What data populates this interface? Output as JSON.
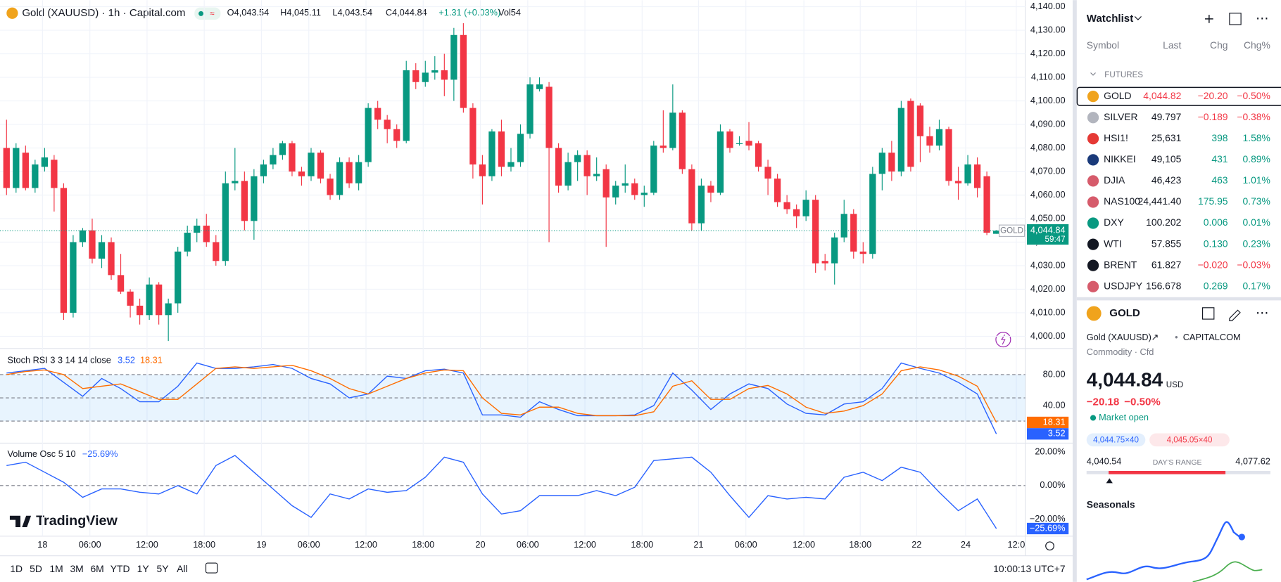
{
  "header": {
    "title": "Gold (XAUUSD) · 1h · Capital.com",
    "open": "O4,043.54",
    "high": "H4,045.11",
    "low": "L4,043.54",
    "close": "C4,044.84",
    "change": "+1.31 (+0.03%)",
    "volume": "Vol54"
  },
  "chart_data": [
    {
      "type": "candlestick",
      "up_color": "#089981",
      "down_color": "#f23645",
      "open": [
        4080,
        4063,
        4078,
        4063,
        4072,
        4075,
        4063,
        4010,
        4040,
        4045,
        4033,
        4040,
        4026,
        4019,
        4013,
        4009,
        4022,
        4009,
        4014,
        4036,
        4044,
        4047,
        4040,
        4032,
        4065,
        4066,
        4049,
        4068,
        4073,
        4077,
        4082,
        4070,
        4068,
        4078,
        4067,
        4060,
        4074,
        4065,
        4074,
        4097,
        4092,
        4088,
        4083,
        4113,
        4108,
        4112,
        4113,
        4109,
        4128,
        4097,
        4073,
        4068,
        4087,
        4072,
        4074,
        4086,
        4105,
        4106,
        4080,
        4064,
        4074,
        4077,
        4068,
        4071,
        4059,
        4064,
        4065,
        4060,
        4061,
        4081,
        4080,
        4095,
        4071,
        4048,
        4064,
        4061,
        4087,
        4082,
        4083,
        4082,
        4072,
        4067,
        4057,
        4054,
        4051,
        4058,
        4032,
        4031,
        4042,
        4052,
        4036,
        4035,
        4069,
        4078,
        4070,
        4100,
        4098,
        4085,
        4081,
        4088,
        4066,
        4065,
        4073,
        4068,
        4043.54
      ],
      "high": [
        4092,
        4082,
        4081,
        4075,
        4080,
        4077,
        4065,
        4043,
        4046,
        4050,
        4043,
        4042,
        4035,
        4020,
        4016,
        4025,
        4023,
        4016,
        4038,
        4047,
        4050,
        4052,
        4043,
        4070,
        4080,
        4070,
        4071,
        4075,
        4080,
        4083,
        4083,
        4072,
        4080,
        4079,
        4069,
        4076,
        4076,
        4077,
        4099,
        4100,
        4094,
        4090,
        4117,
        4116,
        4117,
        4119,
        4120,
        4131,
        4133,
        4099,
        4077,
        4088,
        4092,
        4080,
        4090,
        4110,
        4110,
        4108,
        4082,
        4078,
        4079,
        4079,
        4076,
        4073,
        4066,
        4073,
        4067,
        4064,
        4083,
        4096,
        4107,
        4096,
        4073,
        4067,
        4066,
        4090,
        4088,
        4085,
        4091,
        4083,
        4075,
        4069,
        4060,
        4056,
        4062,
        4060,
        4035,
        4044,
        4058,
        4054,
        4040,
        4072,
        4080,
        4083,
        4100,
        4101,
        4099,
        4089,
        4092,
        4089,
        4072,
        4077,
        4076,
        4070,
        4045.11
      ],
      "low": [
        4060,
        4061,
        4062,
        4061,
        4070,
        4053,
        4007,
        4008,
        4038,
        4031,
        4029,
        4024,
        4018,
        4008,
        4005,
        4007,
        4005,
        3998,
        4010,
        4034,
        4040,
        4038,
        4030,
        4030,
        4062,
        4045,
        4041,
        4065,
        4071,
        4075,
        4068,
        4064,
        4066,
        4065,
        4058,
        4058,
        4063,
        4062,
        4072,
        4088,
        4082,
        4080,
        4082,
        4105,
        4106,
        4109,
        4102,
        4100,
        4095,
        4067,
        4056,
        4066,
        4068,
        4070,
        4072,
        4084,
        4104,
        4040,
        4061,
        4062,
        4066,
        4060,
        4066,
        4038,
        4056,
        4061,
        4058,
        4055,
        4060,
        4078,
        4079,
        4069,
        4045,
        4045,
        4057,
        4060,
        4078,
        4081,
        4079,
        4070,
        4060,
        4055,
        4052,
        4046,
        4049,
        4027,
        4028,
        4022,
        4040,
        4033,
        4031,
        4033,
        4062,
        4066,
        4068,
        4070,
        4074,
        4078,
        4079,
        4064,
        4058,
        4064,
        4059,
        4043,
        4043.54
      ],
      "close": [
        4063,
        4080,
        4063,
        4073,
        4076,
        4063,
        4010,
        4040,
        4045,
        4033,
        4040,
        4026,
        4019,
        4013,
        4009,
        4022,
        4009,
        4014,
        4036,
        4044,
        4047,
        4040,
        4032,
        4065,
        4066,
        4049,
        4068,
        4073,
        4077,
        4082,
        4070,
        4068,
        4078,
        4067,
        4060,
        4074,
        4065,
        4074,
        4097,
        4092,
        4088,
        4083,
        4113,
        4108,
        4112,
        4113,
        4109,
        4128,
        4097,
        4073,
        4068,
        4087,
        4072,
        4074,
        4086,
        4107,
        4107,
        4080,
        4064,
        4074,
        4077,
        4068,
        4069,
        4059,
        4064,
        4065,
        4060,
        4061,
        4081,
        4080,
        4095,
        4071,
        4048,
        4064,
        4061,
        4087,
        4080,
        4082,
        4081,
        4072,
        4067,
        4057,
        4054,
        4051,
        4058,
        4031,
        4031,
        4042,
        4052,
        4036,
        4035,
        4069,
        4078,
        4070,
        4097,
        4072,
        4085,
        4081,
        4088,
        4066,
        4065,
        4073,
        4063,
        4044,
        4044.84
      ],
      "ylim": [
        3995.5,
        4142.8
      ],
      "yticks": [
        {
          "value": 4000,
          "label": "4,000.00"
        },
        {
          "value": 4010,
          "label": "4,010.00"
        },
        {
          "value": 4020,
          "label": "4,020.00"
        },
        {
          "value": 4030,
          "label": "4,030.00"
        },
        {
          "value": 4040,
          "label": "4,040.00"
        },
        {
          "value": 4050,
          "label": "4,050.00"
        },
        {
          "value": 4060,
          "label": "4,060.00"
        },
        {
          "value": 4070,
          "label": "4,070.00"
        },
        {
          "value": 4080,
          "label": "4,080.00"
        },
        {
          "value": 4090,
          "label": "4,090.00"
        },
        {
          "value": 4100,
          "label": "4,100.00"
        },
        {
          "value": 4110,
          "label": "4,110.00"
        },
        {
          "value": 4120,
          "label": "4,120.00"
        },
        {
          "value": 4130,
          "label": "4,130.00"
        },
        {
          "value": 4140,
          "label": "4,140.00"
        }
      ],
      "xticks": [
        "18",
        "06:00",
        "12:00",
        "18:00",
        "19",
        "06:00",
        "12:00",
        "18:00",
        "20",
        "06:00",
        "12:00",
        "18:00",
        "21",
        "06:00",
        "12:00",
        "18:00",
        "22",
        "24",
        "12:0"
      ],
      "grid": true,
      "last_price": {
        "value": 4044.84,
        "label": "4,044.84"
      },
      "last_symbol": "GOLD",
      "countdown": "59:47"
    },
    {
      "type": "line",
      "title": "Stoch RSI 3 3 14 14 close",
      "series": [
        {
          "color": "#2962ff",
          "values": [
            82,
            85,
            88,
            70,
            52,
            75,
            62,
            45,
            45,
            65,
            95,
            88,
            88,
            90,
            93,
            88,
            75,
            68,
            50,
            55,
            78,
            75,
            85,
            87,
            82,
            28,
            28,
            25,
            45,
            35,
            27,
            27,
            27,
            28,
            40,
            82,
            60,
            35,
            55,
            68,
            62,
            42,
            30,
            28,
            42,
            45,
            62,
            95,
            88,
            82,
            70,
            55,
            3.52
          ]
        },
        {
          "color": "#ff6d00",
          "values": [
            80,
            84,
            86,
            80,
            62,
            65,
            68,
            58,
            48,
            48,
            68,
            88,
            90,
            88,
            90,
            92,
            85,
            75,
            62,
            55,
            65,
            75,
            82,
            86,
            85,
            50,
            30,
            28,
            38,
            38,
            30,
            27,
            27,
            27,
            32,
            65,
            72,
            48,
            48,
            62,
            66,
            55,
            38,
            30,
            33,
            40,
            55,
            85,
            90,
            86,
            78,
            65,
            18.31
          ]
        }
      ],
      "ylim": [
        -5.3,
        110.5
      ],
      "yticks": [
        {
          "value": 80,
          "label": "80.00"
        },
        {
          "value": 40,
          "label": "40.00"
        }
      ],
      "hlines": [
        80,
        50,
        20
      ],
      "band": [
        80,
        20
      ]
    },
    {
      "type": "line",
      "title": "Volume Osc 5 10",
      "legend_value": "−25.69%",
      "series": [
        {
          "color": "#2962ff",
          "values": [
            12,
            14,
            8,
            2,
            -7,
            -2,
            -2,
            -4,
            -5,
            0,
            -5,
            12,
            18,
            8,
            -2,
            -12,
            -19,
            -5,
            -8,
            -2,
            -4,
            -3,
            5,
            17,
            14,
            -5,
            -17,
            -15,
            -6,
            -6,
            -6,
            -3,
            -6,
            -1,
            15,
            16,
            17,
            8,
            -6,
            -19,
            -6,
            -8,
            -7,
            -8,
            5,
            8,
            3,
            11,
            8,
            -4,
            -15,
            -8,
            -25.69
          ]
        }
      ],
      "ylim": [
        -31.7,
        24.4
      ],
      "yticks": [
        {
          "value": 20,
          "label": "20.00%"
        },
        {
          "value": 0,
          "label": "0.00%"
        },
        {
          "value": -20,
          "label": "−20.00%"
        }
      ],
      "hlines": [
        0
      ]
    }
  ],
  "branding": "TradingView",
  "toolbar": {
    "ranges": [
      "1D",
      "5D",
      "1M",
      "3M",
      "6M",
      "YTD",
      "1Y",
      "5Y",
      "All"
    ],
    "clock": "10:00:13 UTC+7"
  },
  "watchlist": {
    "title": "Watchlist",
    "columns": [
      "Symbol",
      "Last",
      "Chg",
      "Chg%"
    ],
    "section": "FUTURES",
    "rows": [
      {
        "symbol": "GOLD",
        "last": "4,044.82",
        "chg": "−20.20",
        "chg_pct": "−0.50%",
        "color": "#f23645",
        "icon_color": "#f0a31c",
        "selected": true
      },
      {
        "symbol": "SILVER",
        "last": "49.797",
        "chg": "−0.189",
        "chg_pct": "−0.38%",
        "color": "#f23645",
        "icon_color": "#b2b5be"
      },
      {
        "symbol": "HSI1!",
        "last": "25,631",
        "chg": "398",
        "chg_pct": "1.58%",
        "color": "#089981",
        "icon_color": "#e53935"
      },
      {
        "symbol": "NIKKEI",
        "last": "49,105",
        "chg": "431",
        "chg_pct": "0.89%",
        "color": "#089981",
        "icon_color": "#1a3a7a"
      },
      {
        "symbol": "DJIA",
        "last": "46,423",
        "chg": "463",
        "chg_pct": "1.01%",
        "color": "#089981",
        "icon_color": "#d65b6b"
      },
      {
        "symbol": "NAS100",
        "last": "24,441.40",
        "chg": "175.95",
        "chg_pct": "0.73%",
        "color": "#089981",
        "icon_color": "#d65b6b"
      },
      {
        "symbol": "DXY",
        "last": "100.202",
        "chg": "0.006",
        "chg_pct": "0.01%",
        "color": "#089981",
        "icon_color": "#089981"
      },
      {
        "symbol": "WTI",
        "last": "57.855",
        "chg": "0.130",
        "chg_pct": "0.23%",
        "color": "#089981",
        "icon_color": "#131722"
      },
      {
        "symbol": "BRENT",
        "last": "61.827",
        "chg": "−0.020",
        "chg_pct": "−0.03%",
        "color": "#f23645",
        "icon_color": "#131722"
      },
      {
        "symbol": "USDJPY",
        "last": "156.678",
        "chg": "0.269",
        "chg_pct": "0.17%",
        "color": "#089981",
        "icon_color": "#d65b6b"
      }
    ]
  },
  "details": {
    "symbol": "GOLD",
    "name": "Gold (XAUUSD)",
    "exchange": "CAPITALCOM",
    "kind": "Commodity · Cfd",
    "price": "4,044.84",
    "currency": "USD",
    "change": "−20.18",
    "change_pct": "−0.50%",
    "status": "Market open",
    "bid": "4,044.75×40",
    "ask": "4,045.05×40",
    "range_low": "4,040.54",
    "range_label": "DAY'S RANGE",
    "range_high": "4,077.62",
    "seasonals": "Seasonals"
  }
}
